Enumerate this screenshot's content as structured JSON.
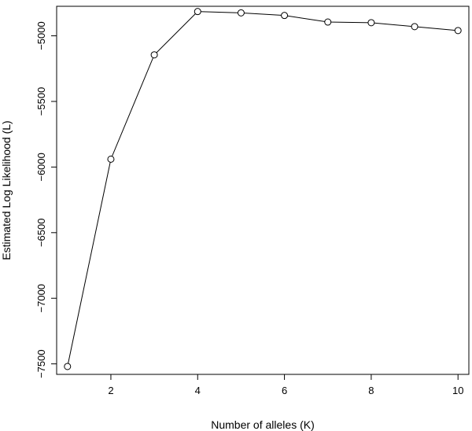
{
  "chart_data": {
    "type": "line",
    "title": "",
    "xlabel": "Number of alleles (K)",
    "ylabel": "Estimated Log Likelihood (L)",
    "xlim": [
      0.75,
      10.25
    ],
    "ylim": [
      -7580,
      -4775
    ],
    "x_ticks": [
      2,
      4,
      6,
      8,
      10
    ],
    "y_ticks": [
      -7500,
      -7000,
      -6500,
      -6000,
      -5500,
      -5000
    ],
    "grid": false,
    "marker": "open-circle",
    "series": [
      {
        "x": [
          1,
          2,
          3,
          4,
          5,
          6,
          7,
          8,
          9,
          10
        ],
        "values": [
          -7520,
          -5940,
          -5145,
          -4815,
          -4825,
          -4845,
          -4895,
          -4900,
          -4930,
          -4960
        ]
      }
    ]
  }
}
